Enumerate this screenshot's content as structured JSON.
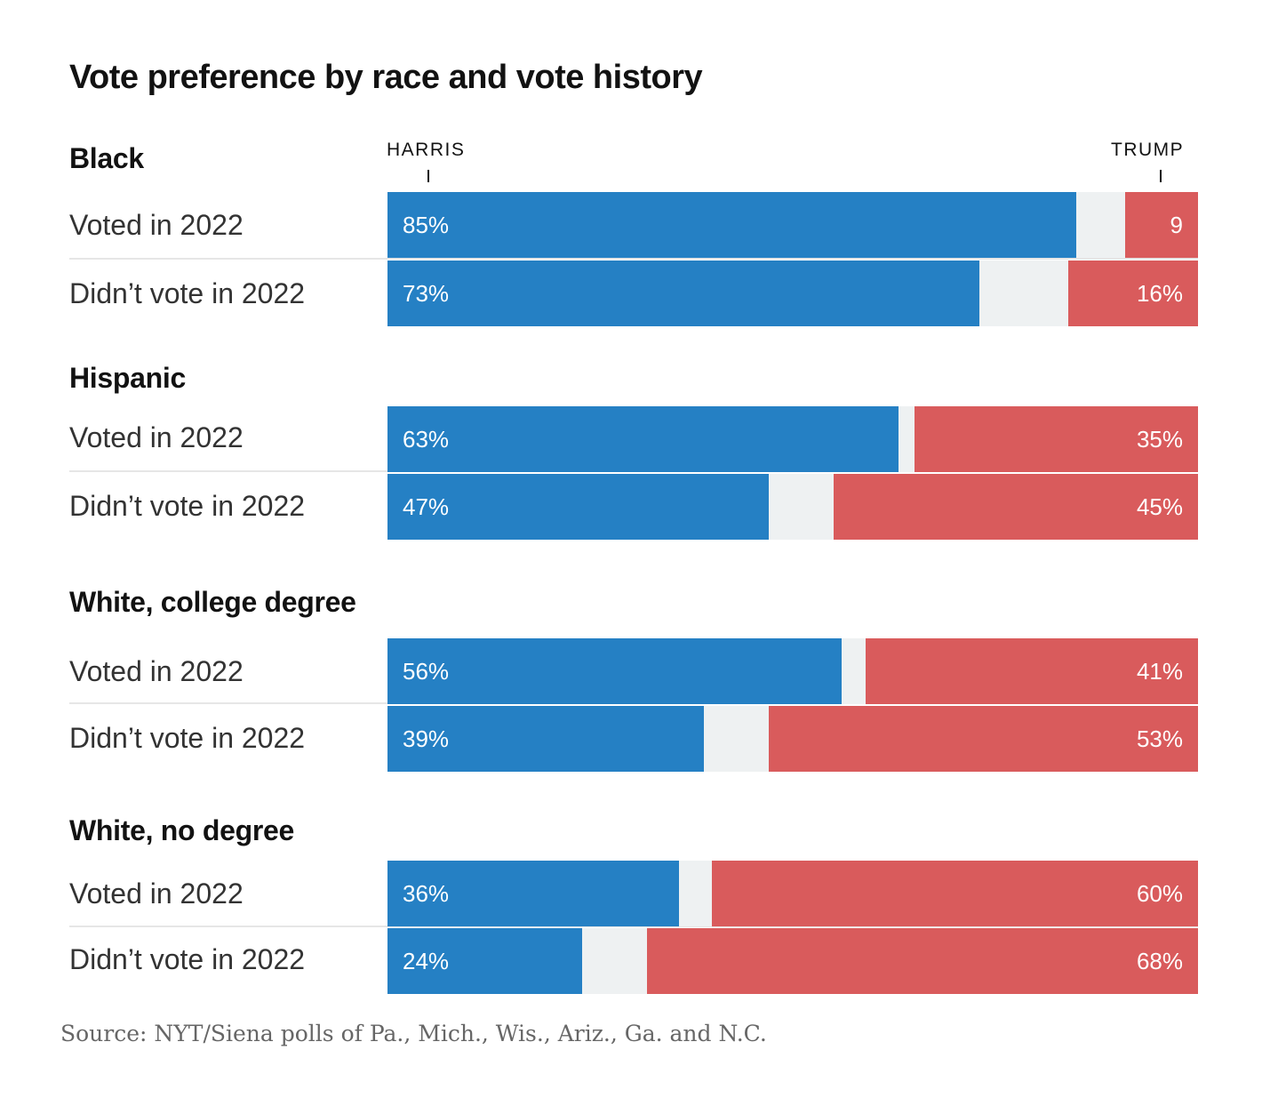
{
  "chart_data": {
    "type": "bar",
    "orientation": "horizontal",
    "stacked": true,
    "title": "Vote preference by race and vote history",
    "axis_labels": {
      "left": "HARRIS",
      "right": "TRUMP"
    },
    "colors": {
      "harris": "#2580c4",
      "trump": "#d95b5c",
      "other": "#eef1f2"
    },
    "groups": [
      {
        "name": "Black",
        "rows": [
          {
            "label": "Voted in 2022",
            "harris": 85,
            "trump": 9,
            "harris_text": "85%",
            "trump_text": "9"
          },
          {
            "label": "Didn’t vote in 2022",
            "harris": 73,
            "trump": 16,
            "harris_text": "73%",
            "trump_text": "16%"
          }
        ]
      },
      {
        "name": "Hispanic",
        "rows": [
          {
            "label": "Voted in 2022",
            "harris": 63,
            "trump": 35,
            "harris_text": "63%",
            "trump_text": "35%"
          },
          {
            "label": "Didn’t vote in 2022",
            "harris": 47,
            "trump": 45,
            "harris_text": "47%",
            "trump_text": "45%"
          }
        ]
      },
      {
        "name": "White, college degree",
        "rows": [
          {
            "label": "Voted in 2022",
            "harris": 56,
            "trump": 41,
            "harris_text": "56%",
            "trump_text": "41%"
          },
          {
            "label": "Didn’t vote in 2022",
            "harris": 39,
            "trump": 53,
            "harris_text": "39%",
            "trump_text": "53%"
          }
        ]
      },
      {
        "name": "White, no degree",
        "rows": [
          {
            "label": "Voted in 2022",
            "harris": 36,
            "trump": 60,
            "harris_text": "36%",
            "trump_text": "60%"
          },
          {
            "label": "Didn’t vote in 2022",
            "harris": 24,
            "trump": 68,
            "harris_text": "24%",
            "trump_text": "68%"
          }
        ]
      }
    ],
    "xlim": [
      0,
      100
    ]
  },
  "source": "Source: NYT/Siena polls of Pa., Mich., Wis., Ariz., Ga. and N.C."
}
